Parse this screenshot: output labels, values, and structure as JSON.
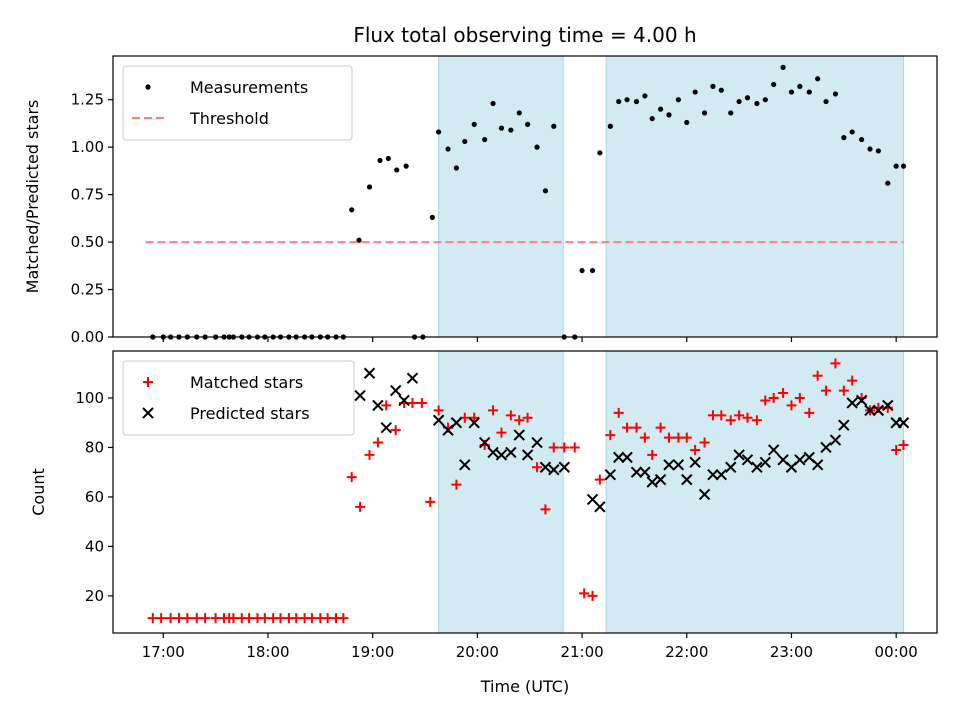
{
  "chart_data": {
    "type": "scatter",
    "title": "Flux total observing time = 4.00 h",
    "xlabel": "Time (UTC)",
    "x_ticks": [
      "17:00",
      "18:00",
      "19:00",
      "20:00",
      "21:00",
      "22:00",
      "23:00",
      "00:00"
    ],
    "x_range_hours": [
      16.52,
      24.39
    ],
    "shaded_intervals_hours": [
      [
        19.63,
        20.82
      ],
      [
        21.23,
        24.07
      ]
    ],
    "shade_color": "#add8e6",
    "panels": [
      {
        "ylabel": "Matched/Predicted stars",
        "ylim": [
          0,
          1.48
        ],
        "y_ticks": [
          "0.00",
          "0.25",
          "0.50",
          "0.75",
          "1.00",
          "1.25"
        ],
        "legend_position": "top-left",
        "threshold": {
          "name": "Threshold",
          "value": 0.5,
          "x_range_hours": [
            16.83,
            24.07
          ],
          "color": "#ff7f7f"
        },
        "series": [
          {
            "name": "Measurements",
            "marker": "dot",
            "color": "#000000",
            "x": [
              16.9,
              17.0,
              17.07,
              17.15,
              17.23,
              17.32,
              17.4,
              17.5,
              17.58,
              17.63,
              17.67,
              17.75,
              17.82,
              17.9,
              17.97,
              18.05,
              18.12,
              18.2,
              18.27,
              18.35,
              18.42,
              18.5,
              18.57,
              18.65,
              18.72,
              18.8,
              18.87,
              18.97,
              19.07,
              19.15,
              19.23,
              19.32,
              19.4,
              19.48,
              19.57,
              19.63,
              19.72,
              19.8,
              19.88,
              19.97,
              20.07,
              20.15,
              20.23,
              20.32,
              20.4,
              20.48,
              20.57,
              20.65,
              20.73,
              20.83,
              20.93,
              21.0,
              21.1,
              21.17,
              21.27,
              21.35,
              21.43,
              21.52,
              21.6,
              21.67,
              21.75,
              21.83,
              21.92,
              22.0,
              22.08,
              22.17,
              22.25,
              22.33,
              22.42,
              22.5,
              22.58,
              22.67,
              22.75,
              22.83,
              22.92,
              23.0,
              23.08,
              23.17,
              23.25,
              23.33,
              23.42,
              23.5,
              23.58,
              23.67,
              23.75,
              23.83,
              23.92,
              24.0,
              24.07
            ],
            "y": [
              0,
              0,
              0,
              0,
              0,
              0,
              0,
              0,
              0,
              0,
              0,
              0,
              0,
              0,
              0,
              0,
              0,
              0,
              0,
              0,
              0,
              0,
              0,
              0,
              0,
              0.67,
              0.51,
              0.79,
              0.93,
              0.94,
              0.88,
              0.9,
              0,
              0,
              0.63,
              1.08,
              0.99,
              0.89,
              1.03,
              1.12,
              1.04,
              1.23,
              1.1,
              1.09,
              1.18,
              1.12,
              1.0,
              0.77,
              1.11,
              0,
              0,
              0.35,
              0.35,
              0.97,
              1.11,
              1.24,
              1.25,
              1.24,
              1.27,
              1.15,
              1.2,
              1.17,
              1.25,
              1.13,
              1.29,
              1.18,
              1.32,
              1.3,
              1.18,
              1.24,
              1.26,
              1.23,
              1.25,
              1.33,
              1.42,
              1.29,
              1.32,
              1.29,
              1.36,
              1.24,
              1.28,
              1.05,
              1.08,
              1.04,
              0.99,
              0.98,
              0.81,
              0.9,
              0.9
            ]
          }
        ]
      },
      {
        "ylabel": "Count",
        "ylim": [
          5,
          119
        ],
        "y_ticks": [
          "20",
          "40",
          "60",
          "80",
          "100"
        ],
        "legend_position": "top-left",
        "series": [
          {
            "name": "Matched stars",
            "marker": "plus",
            "color": "#ff0000",
            "x": [
              16.9,
              16.98,
              17.07,
              17.15,
              17.23,
              17.32,
              17.4,
              17.5,
              17.58,
              17.63,
              17.67,
              17.75,
              17.82,
              17.9,
              17.97,
              18.05,
              18.12,
              18.2,
              18.27,
              18.35,
              18.42,
              18.5,
              18.57,
              18.65,
              18.72,
              18.8,
              18.88,
              18.97,
              19.05,
              19.13,
              19.22,
              19.3,
              19.38,
              19.47,
              19.55,
              19.63,
              19.72,
              19.8,
              19.88,
              19.97,
              20.07,
              20.15,
              20.23,
              20.32,
              20.4,
              20.48,
              20.57,
              20.65,
              20.73,
              20.83,
              20.93,
              21.02,
              21.1,
              21.17,
              21.27,
              21.35,
              21.43,
              21.52,
              21.6,
              21.67,
              21.75,
              21.83,
              21.92,
              22.0,
              22.08,
              22.17,
              22.25,
              22.33,
              22.42,
              22.5,
              22.58,
              22.67,
              22.75,
              22.83,
              22.92,
              23.0,
              23.08,
              23.17,
              23.25,
              23.33,
              23.42,
              23.5,
              23.58,
              23.67,
              23.75,
              23.83,
              23.92,
              24.0,
              24.07
            ],
            "y": [
              11,
              11,
              11,
              11,
              11,
              11,
              11,
              11,
              11,
              11,
              11,
              11,
              11,
              11,
              11,
              11,
              11,
              11,
              11,
              11,
              11,
              11,
              11,
              11,
              11,
              68,
              56,
              77,
              82,
              97,
              87,
              98,
              98,
              98,
              58,
              95,
              88,
              65,
              92,
              92,
              81,
              95,
              86,
              93,
              91,
              92,
              72,
              55,
              80,
              80,
              80,
              21,
              20,
              67,
              85,
              94,
              88,
              88,
              84,
              77,
              88,
              84,
              84,
              84,
              79,
              82,
              93,
              93,
              91,
              93,
              92,
              91,
              99,
              100,
              102,
              97,
              100,
              94,
              109,
              103,
              114,
              103,
              107,
              100,
              95,
              96,
              96,
              79,
              81
            ]
          },
          {
            "name": "Predicted stars",
            "marker": "x",
            "color": "#000000",
            "x": [
              18.88,
              18.97,
              19.05,
              19.13,
              19.22,
              19.3,
              19.38,
              19.63,
              19.72,
              19.8,
              19.88,
              19.97,
              20.07,
              20.15,
              20.23,
              20.32,
              20.4,
              20.48,
              20.57,
              20.65,
              20.73,
              20.83,
              21.1,
              21.17,
              21.27,
              21.35,
              21.43,
              21.52,
              21.6,
              21.67,
              21.75,
              21.83,
              21.92,
              22.0,
              22.08,
              22.17,
              22.25,
              22.33,
              22.42,
              22.5,
              22.58,
              22.67,
              22.75,
              22.83,
              22.92,
              23.0,
              23.08,
              23.17,
              23.25,
              23.33,
              23.42,
              23.5,
              23.58,
              23.67,
              23.75,
              23.83,
              23.92,
              24.0,
              24.07
            ],
            "y": [
              101,
              110,
              97,
              88,
              103,
              99,
              108,
              91,
              87,
              90,
              73,
              90,
              82,
              78,
              77,
              78,
              85,
              77,
              82,
              72,
              71,
              72,
              59,
              56,
              69,
              76,
              76,
              70,
              70,
              66,
              67,
              73,
              73,
              67,
              74,
              61,
              69,
              69,
              72,
              77,
              75,
              72,
              74,
              79,
              75,
              72,
              75,
              76,
              73,
              80,
              83,
              89,
              98,
              99,
              95,
              95,
              97,
              90,
              90
            ]
          }
        ]
      }
    ]
  }
}
